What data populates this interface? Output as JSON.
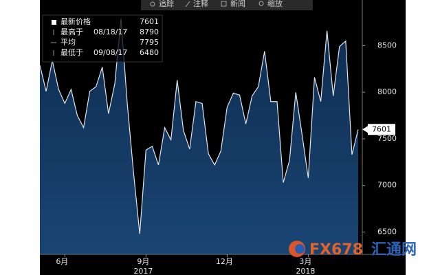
{
  "toolbar": {
    "items": [
      "追踪",
      "注释",
      "新闻",
      "缩放"
    ]
  },
  "chart_data": {
    "type": "area",
    "legend": {
      "latest": {
        "label": "最新价格"
      },
      "high": {
        "label": "最高于",
        "date": "08/18/17",
        "value": 8790
      },
      "average": {
        "label": "平均",
        "value": 7795
      },
      "low": {
        "label": "最低于",
        "date": "09/08/17",
        "value": 6480
      }
    },
    "categories": [
      null,
      null,
      null,
      null,
      "6月",
      null,
      null,
      null,
      null,
      null,
      null,
      null,
      null,
      null,
      null,
      null,
      null,
      "9月",
      null,
      null,
      null,
      null,
      null,
      null,
      null,
      null,
      null,
      null,
      null,
      null,
      "12月",
      null,
      null,
      null,
      null,
      null,
      null,
      null,
      null,
      null,
      null,
      null,
      null,
      "3月",
      null,
      null,
      null,
      null,
      null,
      null,
      null,
      null
    ],
    "year_labels": [
      {
        "category": 17,
        "label": "2017"
      },
      {
        "category": 43,
        "label": "2018"
      }
    ],
    "series": [
      {
        "color": "#dfe6ee",
        "fill": "#123a66",
        "values": [
          8290,
          8010,
          8340,
          8030,
          7880,
          8030,
          7750,
          7620,
          8010,
          8060,
          8270,
          7770,
          8090,
          8790,
          7880,
          7140,
          6480,
          7380,
          7420,
          7220,
          7620,
          7490,
          8130,
          7590,
          7390,
          7900,
          7880,
          7340,
          7220,
          7370,
          7840,
          7990,
          7970,
          7660,
          7960,
          8060,
          8440,
          7900,
          7900,
          7030,
          7270,
          8000,
          7550,
          7080,
          8160,
          7900,
          8660,
          7960,
          8490,
          8550,
          7330,
          7601
        ]
      }
    ],
    "ylim": [
      6260,
      8990
    ],
    "yticks": [
      6500,
      7000,
      7500,
      8000,
      8500
    ],
    "axis_side": "right",
    "grid": false
  },
  "watermark": {
    "brand": "FX678",
    "name": "汇通网"
  }
}
